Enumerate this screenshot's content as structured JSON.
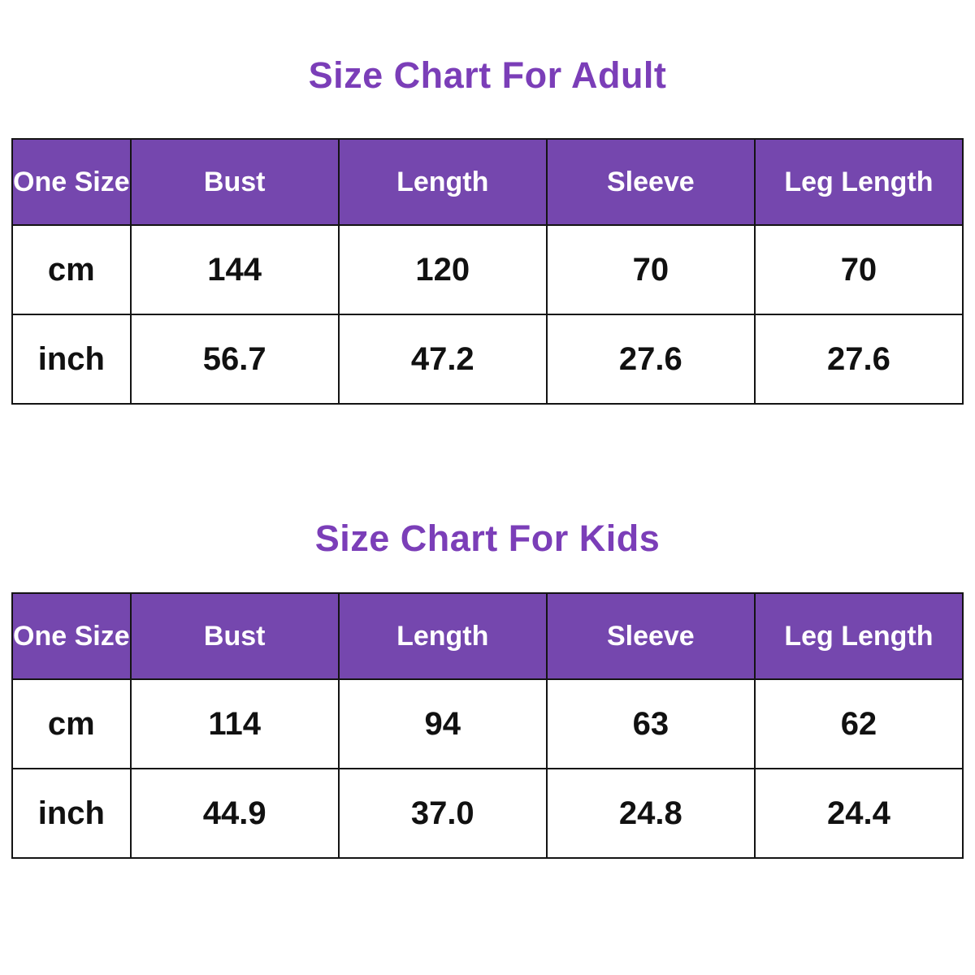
{
  "colors": {
    "title_text": "#7b3eb8",
    "header_bg": "#7547ae",
    "header_text": "#ffffff",
    "cell_text": "#111111",
    "border": "#141414",
    "background": "#ffffff"
  },
  "chart_data": [
    {
      "type": "table",
      "title": "Size Chart For Adult",
      "columns": [
        "One Size",
        "Bust",
        "Length",
        "Sleeve",
        "Leg Length"
      ],
      "rows": [
        {
          "label": "cm",
          "values": [
            "144",
            "120",
            "70",
            "70"
          ]
        },
        {
          "label": "inch",
          "values": [
            "56.7",
            "47.2",
            "27.6",
            "27.6"
          ]
        }
      ]
    },
    {
      "type": "table",
      "title": "Size Chart For Kids",
      "columns": [
        "One Size",
        "Bust",
        "Length",
        "Sleeve",
        "Leg Length"
      ],
      "rows": [
        {
          "label": "cm",
          "values": [
            "114",
            "94",
            "63",
            "62"
          ]
        },
        {
          "label": "inch",
          "values": [
            "44.9",
            "37.0",
            "24.8",
            "24.4"
          ]
        }
      ]
    }
  ]
}
